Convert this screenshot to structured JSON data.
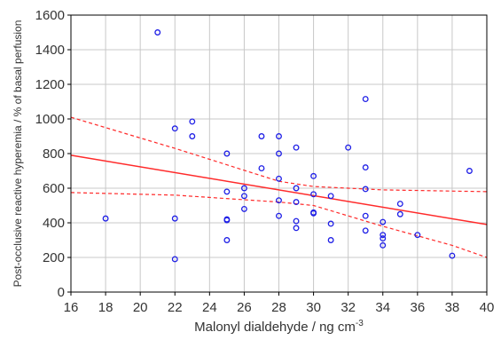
{
  "chart_data": {
    "type": "scatter",
    "title": "",
    "xlabel": "Malonyl dialdehyde / ng cm",
    "xlabel_superscript": "-3",
    "ylabel": "Post-occlusive reactive hyperemia / % of basal perfusion",
    "xlim": [
      16,
      40
    ],
    "ylim": [
      0,
      1600
    ],
    "xticks": [
      16,
      18,
      20,
      22,
      24,
      26,
      28,
      30,
      32,
      34,
      36,
      38,
      40
    ],
    "yticks": [
      0,
      200,
      400,
      600,
      800,
      1000,
      1200,
      1400,
      1600
    ],
    "grid": true,
    "legend": false,
    "colors": {
      "points": "#1f1fe6",
      "regression": "#ff2a2a",
      "grid": "#c8c8c8",
      "axis": "#000000"
    },
    "series": [
      {
        "kind": "points",
        "x": [
          18,
          21,
          22,
          22,
          22,
          23,
          23,
          25,
          25,
          25,
          25,
          25,
          26,
          26,
          26,
          27,
          27,
          28,
          28,
          28,
          28,
          28,
          29,
          29,
          29,
          29,
          29,
          30,
          30,
          30,
          30,
          31,
          31,
          31,
          32,
          33,
          33,
          33,
          33,
          33,
          34,
          34,
          34,
          34,
          35,
          35,
          36,
          38,
          39
        ],
        "y": [
          425,
          1500,
          945,
          425,
          190,
          985,
          900,
          800,
          580,
          420,
          415,
          300,
          600,
          555,
          480,
          900,
          715,
          900,
          800,
          655,
          530,
          440,
          835,
          600,
          520,
          410,
          370,
          670,
          565,
          460,
          455,
          555,
          395,
          300,
          835,
          1115,
          720,
          595,
          440,
          355,
          405,
          330,
          310,
          270,
          510,
          450,
          330,
          210,
          700
        ]
      },
      {
        "kind": "regression",
        "x": [
          16,
          40
        ],
        "y": [
          790,
          390
        ]
      },
      {
        "kind": "confidence-upper",
        "x": [
          16,
          22,
          28,
          30,
          34,
          40
        ],
        "y": [
          1010,
          830,
          640,
          610,
          590,
          580
        ]
      },
      {
        "kind": "confidence-lower",
        "x": [
          16,
          22,
          28,
          30,
          34,
          38,
          40
        ],
        "y": [
          575,
          560,
          520,
          500,
          380,
          270,
          200
        ]
      }
    ]
  }
}
